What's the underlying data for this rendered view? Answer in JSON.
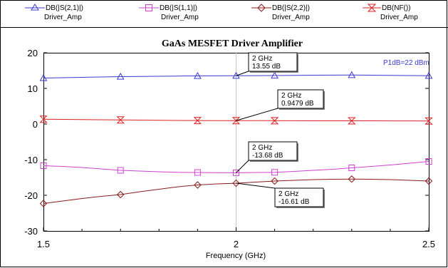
{
  "chart_data": {
    "type": "line",
    "title": "GaAs MESFET Driver Amplifier",
    "xlabel": "Frequency (GHz)",
    "ylabel": "",
    "xlim": [
      1.5,
      2.5
    ],
    "ylim": [
      -30,
      20
    ],
    "x_ticks": [
      1.5,
      2,
      2.5
    ],
    "x_tick_labels": [
      "1.5",
      "2",
      "2.5"
    ],
    "y_ticks": [
      20,
      10,
      0,
      -10,
      -20,
      -30
    ],
    "y_tick_labels": [
      "20",
      "10",
      "0",
      "-10",
      "-20",
      "-30"
    ],
    "grid": "off",
    "legend_position": "top",
    "series": [
      {
        "name": "DB(|S(2,1)|)",
        "subname": "Driver_Amp",
        "color": "#3a3ad0",
        "marker": "triangle",
        "x": [
          1.5,
          1.55,
          1.6,
          1.65,
          1.7,
          1.75,
          1.8,
          1.85,
          1.9,
          1.95,
          2.0,
          2.05,
          2.1,
          2.15,
          2.2,
          2.25,
          2.3,
          2.35,
          2.4,
          2.45,
          2.5
        ],
        "values": [
          12.9,
          13.0,
          13.1,
          13.2,
          13.3,
          13.35,
          13.4,
          13.45,
          13.5,
          13.52,
          13.55,
          13.58,
          13.6,
          13.65,
          13.7,
          13.72,
          13.75,
          13.7,
          13.65,
          13.6,
          13.55
        ],
        "marker_x": [
          1.5,
          1.7,
          1.9,
          2.0,
          2.1,
          2.3,
          2.5
        ]
      },
      {
        "name": "DB(|S(1,1)|)",
        "subname": "Driver_Amp",
        "color": "#d040d0",
        "marker": "square",
        "x": [
          1.5,
          1.55,
          1.6,
          1.65,
          1.7,
          1.75,
          1.8,
          1.85,
          1.9,
          1.95,
          2.0,
          2.05,
          2.1,
          2.15,
          2.2,
          2.25,
          2.3,
          2.35,
          2.4,
          2.45,
          2.5
        ],
        "values": [
          -11.7,
          -11.9,
          -12.2,
          -12.6,
          -13.0,
          -13.2,
          -13.4,
          -13.55,
          -13.6,
          -13.65,
          -13.68,
          -13.6,
          -13.55,
          -13.3,
          -13.0,
          -12.7,
          -12.3,
          -11.9,
          -11.5,
          -11.0,
          -10.5
        ],
        "marker_x": [
          1.5,
          1.7,
          1.9,
          2.0,
          2.1,
          2.3,
          2.5
        ]
      },
      {
        "name": "DB(|S(2,2)|)",
        "subname": "Driver_Amp",
        "color": "#8b1a1a",
        "marker": "diamond",
        "x": [
          1.5,
          1.55,
          1.6,
          1.65,
          1.7,
          1.75,
          1.8,
          1.85,
          1.9,
          1.95,
          2.0,
          2.05,
          2.1,
          2.15,
          2.2,
          2.25,
          2.3,
          2.35,
          2.4,
          2.45,
          2.5
        ],
        "values": [
          -22.3,
          -21.6,
          -20.9,
          -20.3,
          -19.8,
          -19.0,
          -18.3,
          -17.6,
          -17.1,
          -16.8,
          -16.61,
          -16.3,
          -16.0,
          -15.8,
          -15.6,
          -15.5,
          -15.45,
          -15.5,
          -15.6,
          -15.8,
          -16.0
        ],
        "marker_x": [
          1.5,
          1.7,
          1.9,
          2.0,
          2.1,
          2.3,
          2.5
        ]
      },
      {
        "name": "DB(NF())",
        "subname": "Driver_Amp",
        "color": "#e02020",
        "marker": "bowtie",
        "x": [
          1.5,
          1.55,
          1.6,
          1.65,
          1.7,
          1.75,
          1.8,
          1.85,
          1.9,
          1.95,
          2.0,
          2.05,
          2.1,
          2.15,
          2.2,
          2.25,
          2.3,
          2.35,
          2.4,
          2.45,
          2.5
        ],
        "values": [
          1.35,
          1.3,
          1.25,
          1.2,
          1.15,
          1.1,
          1.05,
          1.0,
          0.98,
          0.96,
          0.9479,
          0.94,
          0.93,
          0.92,
          0.91,
          0.9,
          0.9,
          0.89,
          0.88,
          0.87,
          0.86
        ],
        "marker_x": [
          1.5,
          1.7,
          1.9,
          2.0,
          2.1,
          2.3,
          2.5
        ]
      }
    ],
    "markers": [
      {
        "series": 0,
        "line1": "2 GHz",
        "line2": "13.55 dB",
        "x": 2.0,
        "y": 13.55
      },
      {
        "series": 3,
        "line1": "2 GHz",
        "line2": "0.9479 dB",
        "x": 2.0,
        "y": 0.9479
      },
      {
        "series": 1,
        "line1": "2 GHz",
        "line2": "-13.68 dB",
        "x": 2.0,
        "y": -13.68
      },
      {
        "series": 2,
        "line1": "2 GHz",
        "line2": "-16.61 dB",
        "x": 2.0,
        "y": -16.61
      }
    ],
    "annotations": [
      "P1dB=22 dBm"
    ],
    "vertical_marker_x": 2.0
  }
}
